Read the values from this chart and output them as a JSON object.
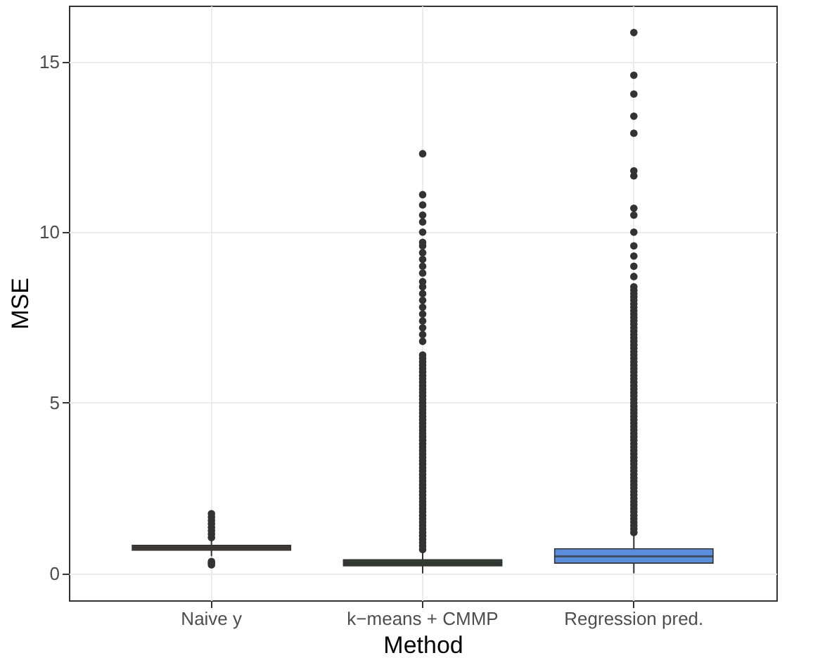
{
  "chart_data": {
    "type": "box",
    "xlabel": "Method",
    "ylabel": "MSE",
    "categories": [
      "Naive y",
      "k−means + CMMP",
      "Regression pred."
    ],
    "colors": [
      "#4a3d3b",
      "#2f3e31",
      "#5b8fdc"
    ],
    "ylim": [
      -0.79,
      16.64
    ],
    "yticks": [
      0,
      5,
      10,
      15
    ],
    "grid": true,
    "boxes": [
      {
        "low": 0.5,
        "q1": 0.68,
        "median": 0.75,
        "q3": 0.82,
        "high": 1.0,
        "outliers": [
          0.25,
          0.3,
          0.35,
          1.05,
          1.15,
          1.25,
          1.35,
          1.45,
          1.55,
          1.65,
          1.75
        ]
      },
      {
        "low": 0.0,
        "q1": 0.22,
        "median": 0.3,
        "q3": 0.4,
        "high": 0.7,
        "outliers": [
          0.7,
          0.8,
          0.9,
          1.0,
          1.1,
          1.2,
          1.3,
          1.4,
          1.5,
          1.6,
          1.7,
          1.8,
          1.9,
          2.0,
          2.1,
          2.2,
          2.3,
          2.4,
          2.5,
          2.6,
          2.7,
          2.8,
          2.9,
          3.0,
          3.1,
          3.2,
          3.3,
          3.4,
          3.5,
          3.6,
          3.7,
          3.8,
          3.9,
          4.0,
          4.1,
          4.2,
          4.3,
          4.4,
          4.5,
          4.6,
          4.7,
          4.8,
          4.9,
          5.0,
          5.1,
          5.2,
          5.3,
          5.4,
          5.5,
          5.6,
          5.7,
          5.8,
          5.9,
          6.0,
          6.1,
          6.2,
          6.3,
          6.4,
          6.8,
          7.0,
          7.2,
          7.4,
          7.6,
          7.8,
          8.0,
          8.2,
          8.4,
          8.55,
          8.8,
          9.0,
          9.2,
          9.4,
          9.6,
          9.7,
          10.0,
          10.3,
          10.5,
          10.8,
          11.1,
          12.3
        ]
      },
      {
        "low": 0.0,
        "q1": 0.3,
        "median": 0.5,
        "q3": 0.72,
        "high": 1.2,
        "outliers": [
          1.2,
          1.3,
          1.4,
          1.5,
          1.6,
          1.7,
          1.8,
          1.9,
          2.0,
          2.1,
          2.2,
          2.3,
          2.4,
          2.5,
          2.6,
          2.7,
          2.8,
          2.9,
          3.0,
          3.1,
          3.2,
          3.3,
          3.4,
          3.5,
          3.6,
          3.7,
          3.8,
          3.9,
          4.0,
          4.1,
          4.2,
          4.3,
          4.4,
          4.5,
          4.6,
          4.7,
          4.8,
          4.9,
          5.0,
          5.1,
          5.2,
          5.3,
          5.4,
          5.5,
          5.6,
          5.7,
          5.8,
          5.9,
          6.0,
          6.1,
          6.2,
          6.3,
          6.4,
          6.5,
          6.6,
          6.7,
          6.8,
          6.9,
          7.0,
          7.1,
          7.2,
          7.3,
          7.4,
          7.5,
          7.6,
          7.7,
          7.8,
          7.9,
          8.0,
          8.1,
          8.2,
          8.3,
          8.4,
          8.7,
          9.0,
          9.3,
          9.6,
          10.0,
          10.5,
          10.7,
          11.65,
          11.8,
          12.9,
          13.4,
          14.05,
          14.6,
          15.85
        ]
      }
    ]
  }
}
